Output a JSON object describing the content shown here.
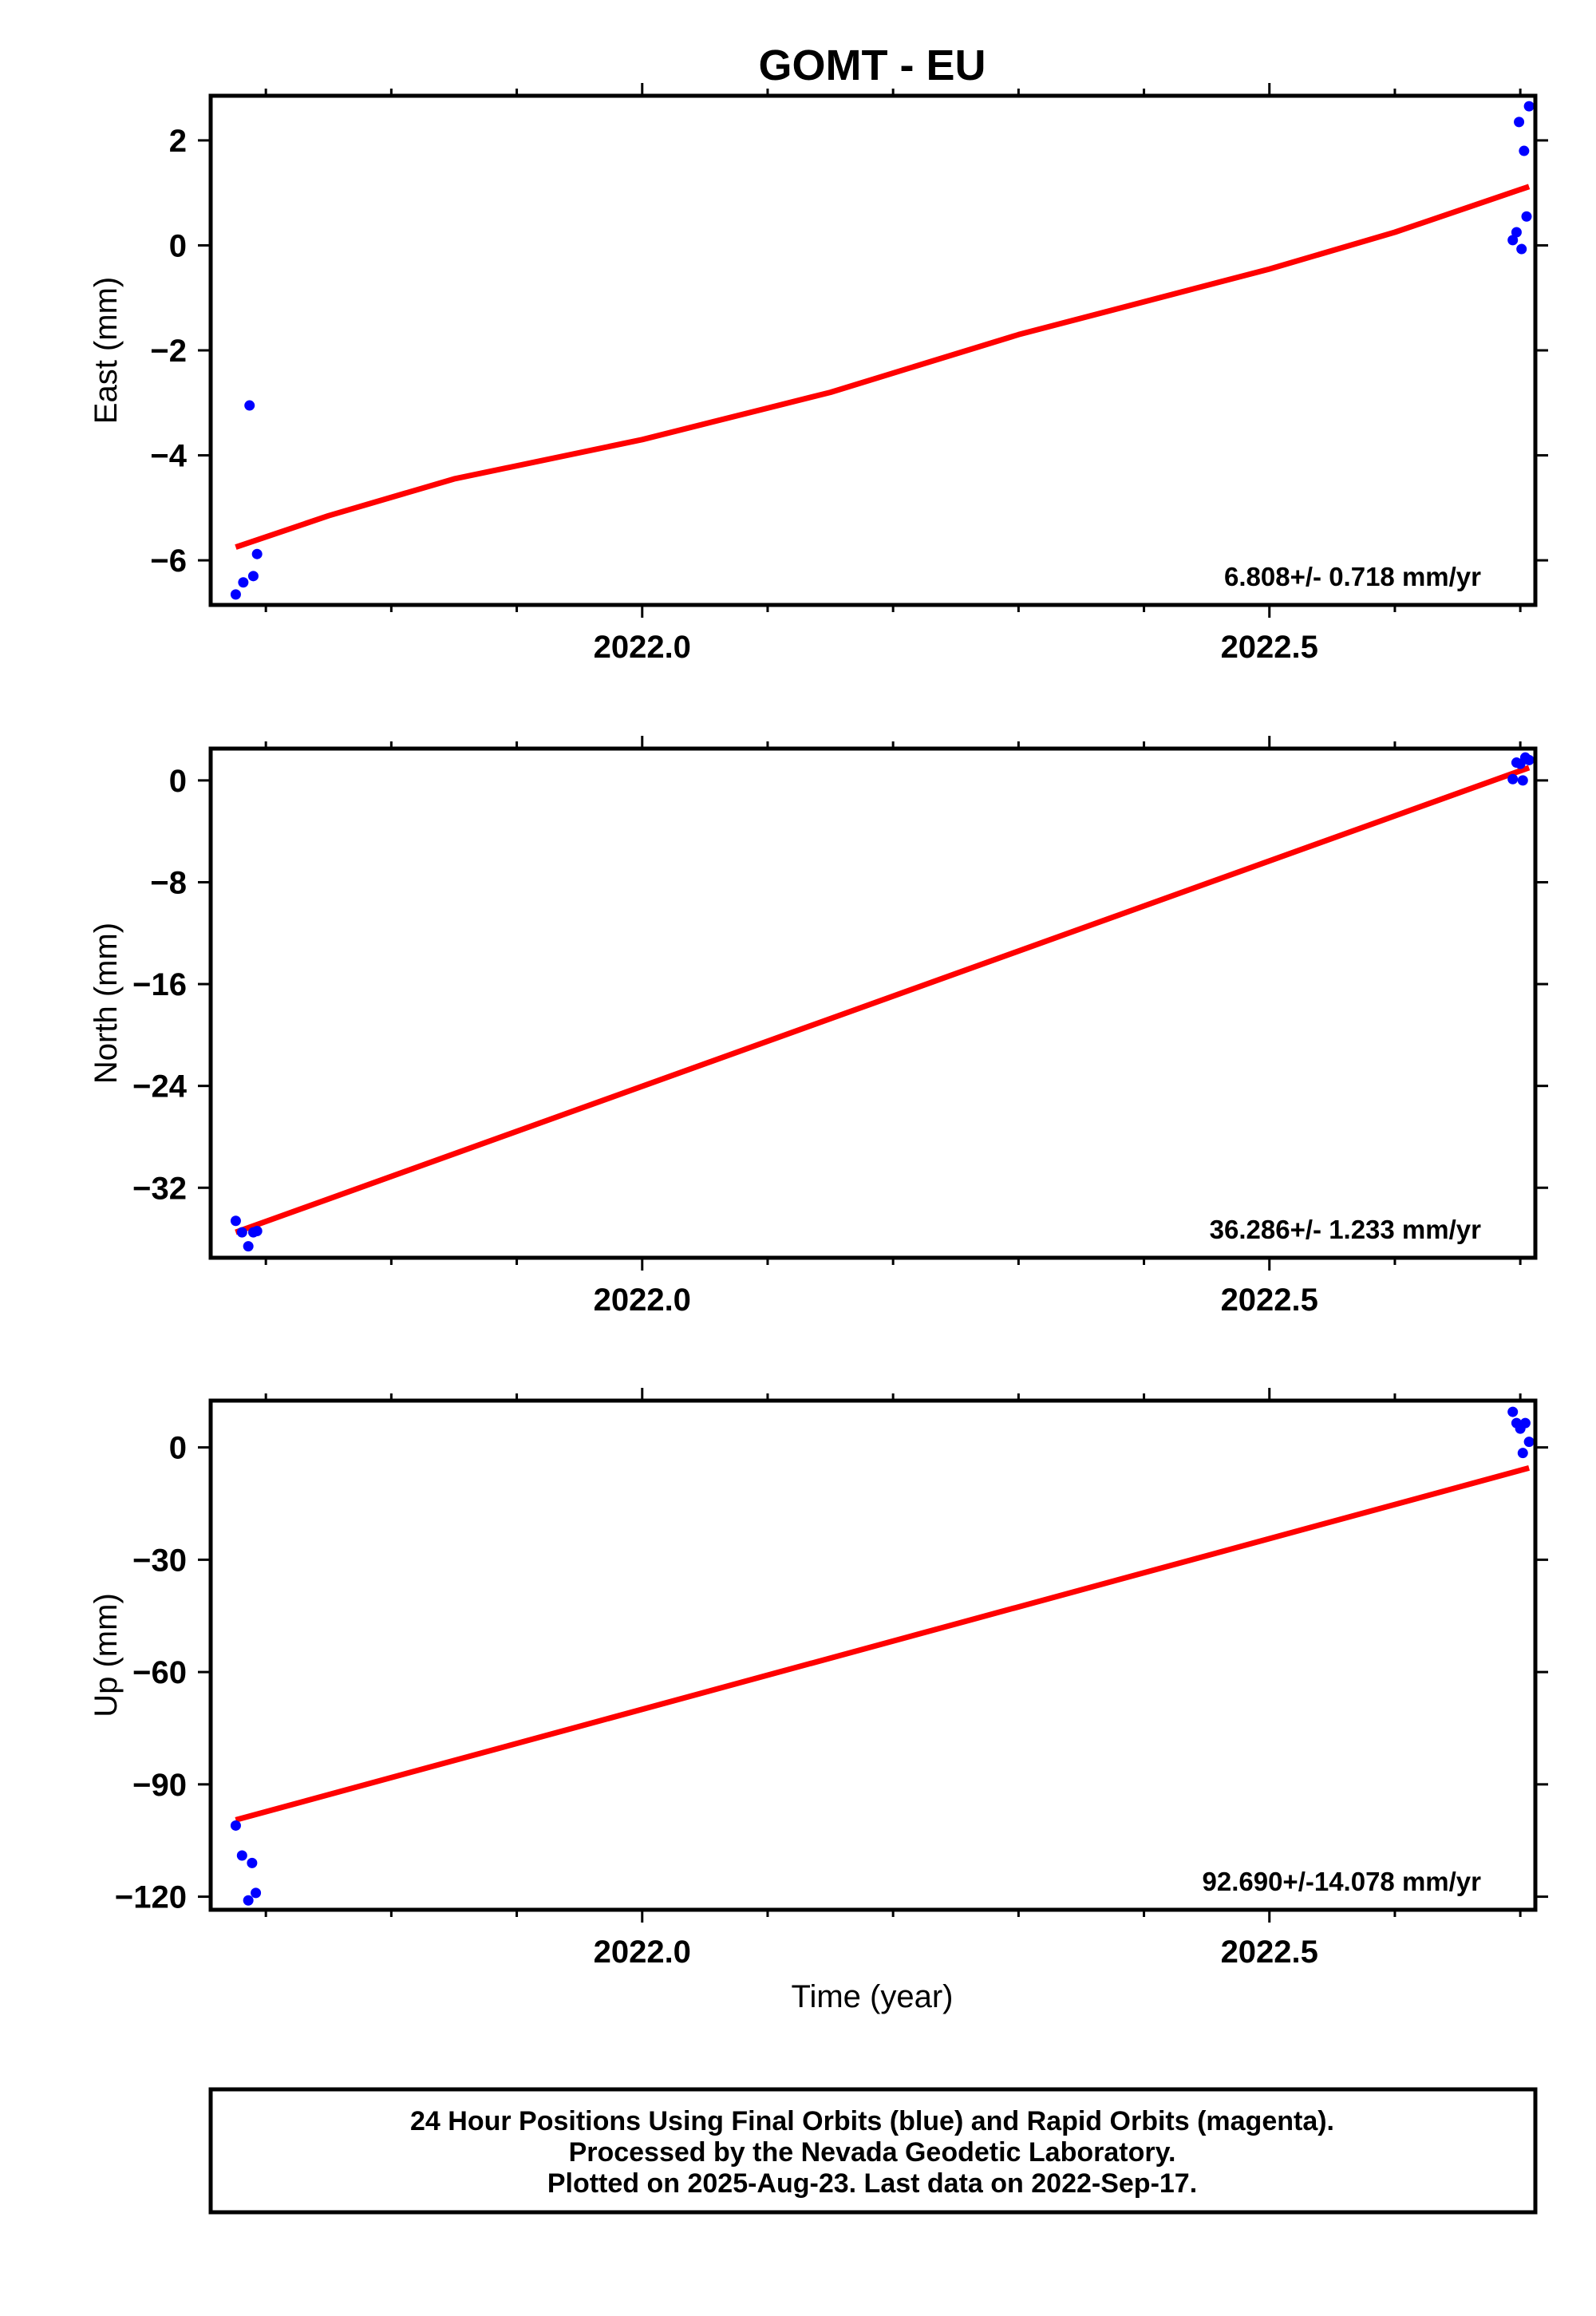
{
  "title": "GOMT - EU",
  "xlabel": "Time (year)",
  "footer": {
    "line1": "24 Hour Positions Using Final Orbits (blue) and Rapid Orbits (magenta).",
    "line2": "Processed by the Nevada Geodetic Laboratory.",
    "line3": "Plotted on 2025-Aug-23. Last data on 2022-Sep-17."
  },
  "colors": {
    "data_points": "#0000ff",
    "trend_line": "#ff0000",
    "frame": "#000000"
  },
  "chart_data": [
    {
      "type": "scatter",
      "ylabel": "East (mm)",
      "rate_text": "6.808+/- 0.718 mm/yr",
      "xlim": [
        2021.656,
        2022.712
      ],
      "ylim": [
        -6.85,
        2.85
      ],
      "xticks": [
        2022.0,
        2022.5
      ],
      "xtick_labels": [
        "2022.0",
        "2022.5"
      ],
      "yticks": [
        -6,
        -4,
        -2,
        0,
        2
      ],
      "ytick_labels": [
        "−6",
        "−4",
        "−2",
        "0",
        "2"
      ],
      "points": [
        [
          2021.676,
          -6.65
        ],
        [
          2021.682,
          -6.42
        ],
        [
          2021.687,
          -3.05
        ],
        [
          2021.69,
          -6.3
        ],
        [
          2021.693,
          -5.88
        ],
        [
          2022.694,
          0.1
        ],
        [
          2022.697,
          0.25
        ],
        [
          2022.699,
          2.35
        ],
        [
          2022.701,
          -0.07
        ],
        [
          2022.703,
          1.8
        ],
        [
          2022.705,
          0.55
        ],
        [
          2022.707,
          2.65
        ]
      ],
      "trend": [
        [
          2021.676,
          -5.75
        ],
        [
          2021.75,
          -5.15
        ],
        [
          2021.85,
          -4.45
        ],
        [
          2022.0,
          -3.7
        ],
        [
          2022.15,
          -2.8
        ],
        [
          2022.3,
          -1.7
        ],
        [
          2022.5,
          -0.45
        ],
        [
          2022.6,
          0.25
        ],
        [
          2022.707,
          1.12
        ]
      ]
    },
    {
      "type": "scatter",
      "ylabel": "North (mm)",
      "rate_text": "36.286+/- 1.233 mm/yr",
      "xlim": [
        2021.656,
        2022.712
      ],
      "ylim": [
        -37.5,
        2.5
      ],
      "xticks": [
        2022.0,
        2022.5
      ],
      "xtick_labels": [
        "2022.0",
        "2022.5"
      ],
      "yticks": [
        -32,
        -24,
        -16,
        -8,
        0
      ],
      "ytick_labels": [
        "−32",
        "−24",
        "−16",
        "−8",
        "0"
      ],
      "points": [
        [
          2021.676,
          -34.6
        ],
        [
          2021.681,
          -35.5
        ],
        [
          2021.686,
          -36.6
        ],
        [
          2021.69,
          -35.5
        ],
        [
          2021.693,
          -35.4
        ],
        [
          2022.694,
          0.1
        ],
        [
          2022.697,
          1.4
        ],
        [
          2022.7,
          1.3
        ],
        [
          2022.702,
          0.0
        ],
        [
          2022.704,
          1.8
        ],
        [
          2022.707,
          1.6
        ]
      ],
      "trend": [
        [
          2021.676,
          -35.5
        ],
        [
          2022.707,
          1.0
        ]
      ]
    },
    {
      "type": "scatter",
      "ylabel": "Up (mm)",
      "rate_text": "92.690+/-14.078 mm/yr",
      "xlim": [
        2021.656,
        2022.712
      ],
      "ylim": [
        -123.5,
        12.5
      ],
      "xticks": [
        2022.0,
        2022.5
      ],
      "xtick_labels": [
        "2022.0",
        "2022.5"
      ],
      "yticks": [
        -120,
        -90,
        -60,
        -30,
        0
      ],
      "ytick_labels": [
        "−120",
        "−90",
        "−60",
        "−30",
        "0"
      ],
      "points": [
        [
          2021.676,
          -101
        ],
        [
          2021.681,
          -109
        ],
        [
          2021.686,
          -121
        ],
        [
          2021.689,
          -111
        ],
        [
          2021.692,
          -119
        ],
        [
          2022.694,
          9.5
        ],
        [
          2022.697,
          6.5
        ],
        [
          2022.7,
          5
        ],
        [
          2022.702,
          -1.5
        ],
        [
          2022.704,
          6.5
        ],
        [
          2022.707,
          1.5
        ]
      ],
      "trend": [
        [
          2021.676,
          -99.5
        ],
        [
          2022.707,
          -5.5
        ]
      ]
    }
  ]
}
